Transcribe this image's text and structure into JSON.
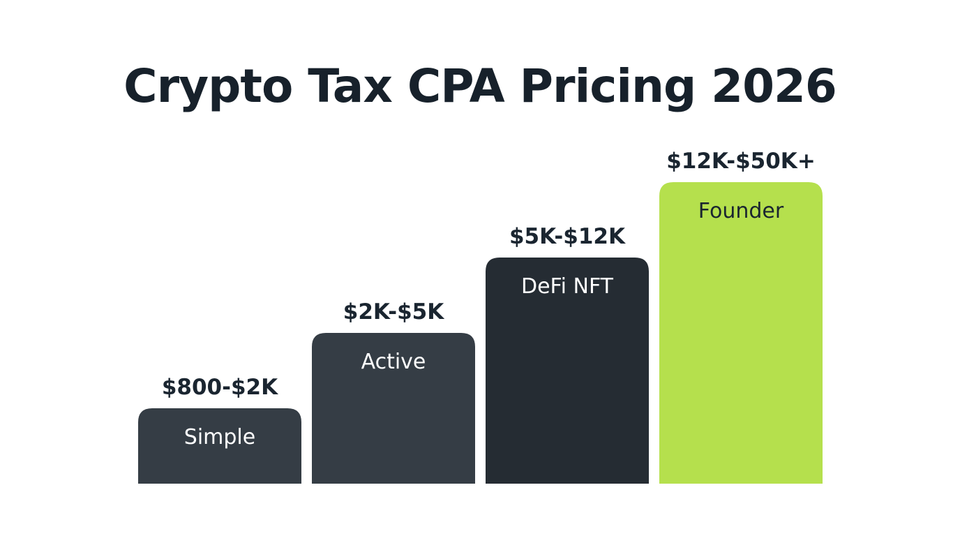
{
  "chart_data": {
    "type": "bar",
    "title": "Crypto Tax CPA Pricing 2026",
    "categories": [
      "Simple",
      "Active",
      "DeFi NFT",
      "Founder"
    ],
    "value_labels": [
      "$800-$2K",
      "$2K-$5K",
      "$5K-$12K",
      "$12K-$50K+"
    ],
    "values": [
      1,
      2,
      3,
      4
    ],
    "ylim": [
      0,
      4
    ],
    "grid": false,
    "legend": "none",
    "colors": {
      "title": "#17212b",
      "value_label": "#1a2530",
      "bar_fills": [
        "#353d45",
        "#353d45",
        "#252c33",
        "#b5e04d"
      ],
      "category_text": [
        "#ffffff",
        "#ffffff",
        "#ffffff",
        "#1a2530"
      ]
    }
  }
}
